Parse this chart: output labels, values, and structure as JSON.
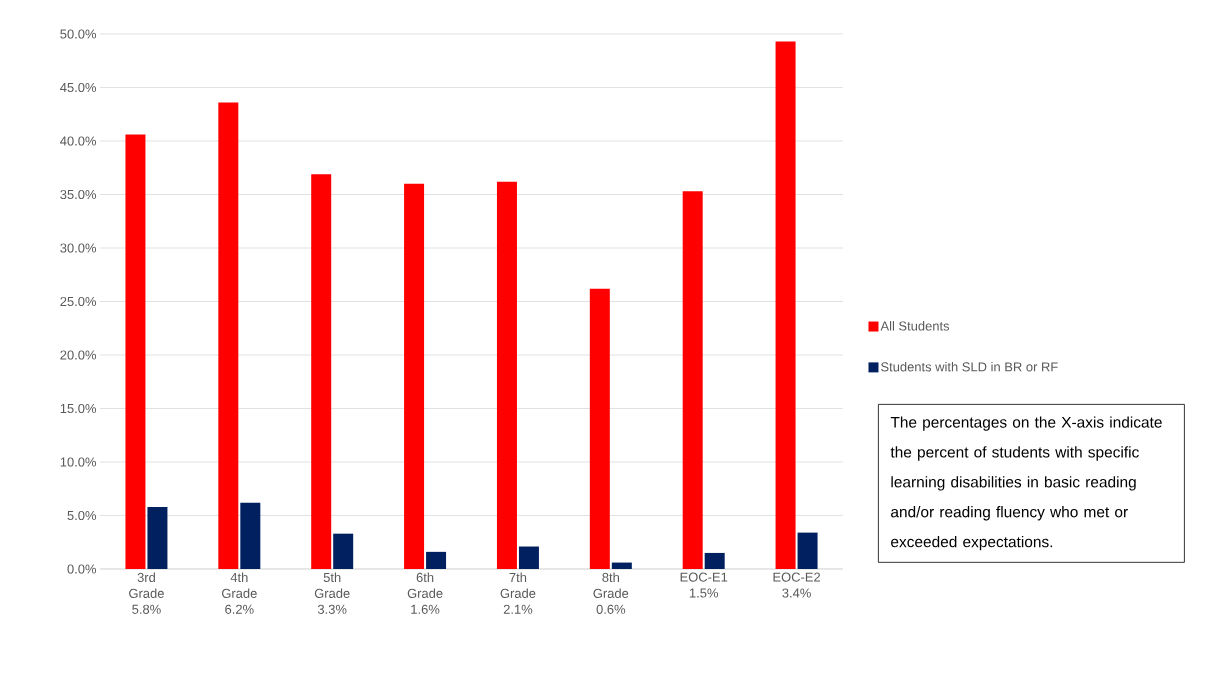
{
  "chart_data": {
    "type": "bar",
    "categories": [
      "3rd Grade 5.8%",
      "4th Grade 6.2%",
      "5th Grade 3.3%",
      "6th Grade 1.6%",
      "7th Grade 2.1%",
      "8th Grade 0.6%",
      "EOC-E1 1.5%",
      "EOC-E2 3.4%"
    ],
    "series": [
      {
        "name": "All Students",
        "color": "#ff0000",
        "values": [
          40.6,
          43.6,
          36.9,
          36.0,
          36.2,
          26.2,
          35.3,
          49.3
        ]
      },
      {
        "name": "Students with SLD in BR or RF",
        "color": "#002060",
        "values": [
          5.8,
          6.2,
          3.3,
          1.6,
          2.1,
          0.6,
          1.5,
          3.4
        ]
      }
    ],
    "ylim": [
      0,
      50
    ],
    "yticks": [
      {
        "value": 0,
        "label": "0.0%"
      },
      {
        "value": 5,
        "label": "5.0%"
      },
      {
        "value": 10,
        "label": "10.0%"
      },
      {
        "value": 15,
        "label": "15.0%"
      },
      {
        "value": 20,
        "label": "20.0%"
      },
      {
        "value": 25,
        "label": "25.0%"
      },
      {
        "value": 30,
        "label": "30.0%"
      },
      {
        "value": 35,
        "label": "35.0%"
      },
      {
        "value": 40,
        "label": "40.0%"
      },
      {
        "value": 45,
        "label": "45.0%"
      },
      {
        "value": 50,
        "label": "50.0%"
      }
    ],
    "grid": "y",
    "legend": "right",
    "annotations": [
      "The percentages on the X-axis indicate the percent of students with specific learning disabilities in basic reading and/or reading fluency who met or exceeded expectations."
    ]
  }
}
